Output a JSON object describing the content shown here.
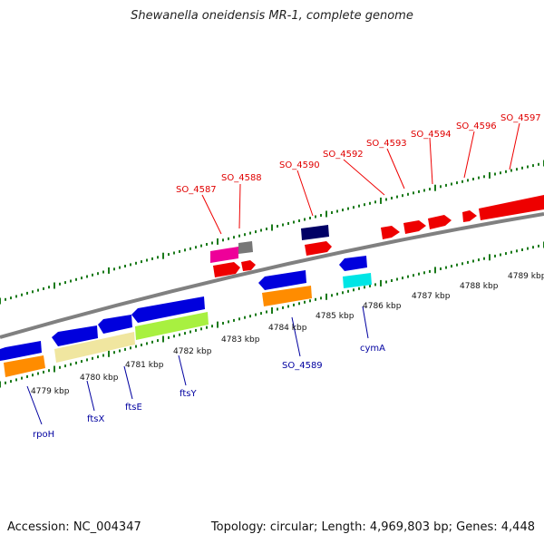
{
  "title": "Shewanella oneidensis MR-1, complete genome",
  "footer": {
    "accession": "Accession: NC_004347",
    "summary": "Topology: circular; Length: 4,969,803 bp; Genes: 4,448"
  },
  "kbp_ticks": [
    "4779 kbp",
    "4780 kbp",
    "4781 kbp",
    "4782 kbp",
    "4783 kbp",
    "4784 kbp",
    "4785 kbp",
    "4786 kbp",
    "4787 kbp",
    "4788 kbp",
    "4789 kbp"
  ],
  "labels_top": [
    "SO_4587",
    "SO_4588",
    "SO_4590",
    "SO_4592",
    "SO_4593",
    "SO_4594",
    "SO_4596",
    "SO_4597"
  ],
  "labels_bottom": [
    "rpoH",
    "ftsX",
    "ftsE",
    "ftsY",
    "SO_4589",
    "cymA"
  ],
  "colors": {
    "axis": "#808080",
    "tick": "#1a7a1a",
    "label_top": "#e00000",
    "label_bottom": "#0000a0",
    "gene_red": "#ee0000",
    "gene_blue": "#0000dd",
    "gene_orange": "#ff8c00",
    "gene_pink": "#ee0099",
    "gene_gray": "#777777",
    "gene_navy": "#000066",
    "gene_cyan": "#00e5e5",
    "gene_khaki": "#f0e6a0",
    "gene_lime": "#a8f040"
  }
}
